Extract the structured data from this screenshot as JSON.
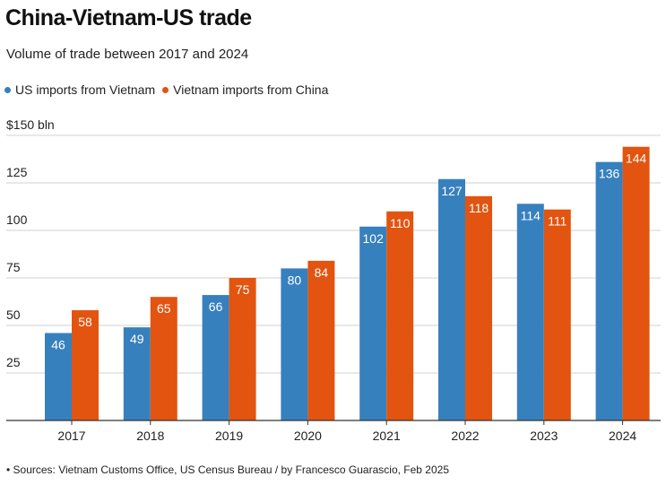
{
  "title": "China-Vietnam-US trade",
  "subtitle": "Volume of trade between 2017 and 2024",
  "source": "• Sources: Vietnam Customs Office, US Census Bureau / by Francesco Guarascio, Feb 2025",
  "colors": {
    "us": "#3780be",
    "vn": "#e2540f",
    "grid": "#d0d0d0",
    "axis": "#333333"
  },
  "chart_data": {
    "type": "bar",
    "categories": [
      "2017",
      "2018",
      "2019",
      "2020",
      "2021",
      "2022",
      "2023",
      "2024"
    ],
    "series": [
      {
        "name": "US imports from Vietnam",
        "values": [
          46,
          49,
          66,
          80,
          102,
          127,
          114,
          136
        ]
      },
      {
        "name": "Vietnam imports from China",
        "values": [
          58,
          65,
          75,
          84,
          110,
          118,
          111,
          144
        ]
      }
    ],
    "yticks": [
      {
        "value": 25,
        "label": "25"
      },
      {
        "value": 50,
        "label": "50"
      },
      {
        "value": 75,
        "label": "75"
      },
      {
        "value": 100,
        "label": "100"
      },
      {
        "value": 125,
        "label": "125"
      },
      {
        "value": 150,
        "label": "$150 bln"
      }
    ],
    "ylim": [
      0,
      150
    ],
    "grid": true,
    "legend": "top-left"
  }
}
